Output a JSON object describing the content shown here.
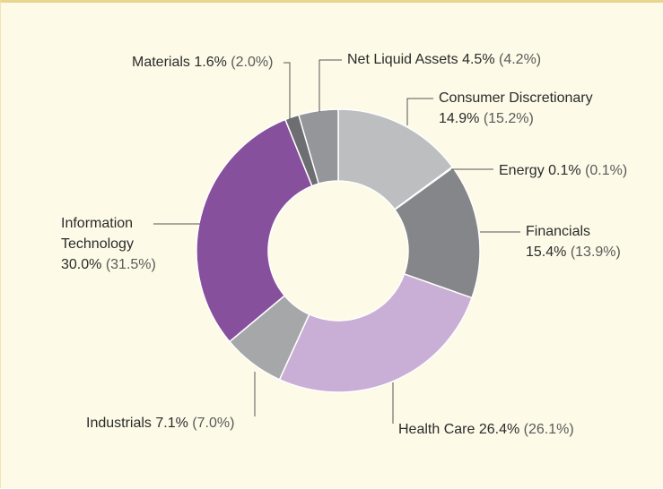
{
  "chart_data": {
    "type": "donut",
    "categories": [
      "Consumer Discretionary",
      "Energy",
      "Financials",
      "Health Care",
      "Industrials",
      "Information Technology",
      "Materials",
      "Net Liquid Assets"
    ],
    "values": [
      14.9,
      0.1,
      15.4,
      26.4,
      7.1,
      30.0,
      1.6,
      4.5
    ],
    "value_labels": [
      "14.9%",
      "0.1%",
      "15.4%",
      "26.4%",
      "7.1%",
      "30.0%",
      "1.6%",
      "4.5%"
    ],
    "comparison_values": [
      15.2,
      0.1,
      13.9,
      26.1,
      7.0,
      31.5,
      2.0,
      4.2
    ],
    "comparison_labels": [
      "(15.2%)",
      "(0.1%)",
      "(13.9%)",
      "(26.1%)",
      "(7.0%)",
      "(31.5%)",
      "(2.0%)",
      "(4.2%)"
    ],
    "colors": [
      "#bdbec0",
      "#c9a2d2",
      "#858689",
      "#c9afd5",
      "#a6a7a9",
      "#87509c",
      "#6d6e71",
      "#959699"
    ]
  }
}
